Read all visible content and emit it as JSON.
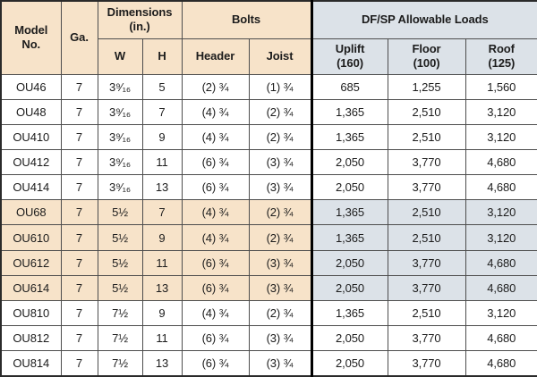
{
  "colors": {
    "tan": "#f7e3c9",
    "bluegray": "#dce2e8",
    "grid": "#4d4d4d",
    "frame": "#2a2a2a",
    "divider": "#000000"
  },
  "table": {
    "header": {
      "model": "Model\nNo.",
      "ga": "Ga.",
      "dimensions_group": "Dimensions\n(in.)",
      "w": "W",
      "h": "H",
      "bolts_group": "Bolts",
      "header_col": "Header",
      "joist": "Joist",
      "loads_group": "DF/SP Allowable Loads",
      "uplift": "Uplift\n(160)",
      "floor": "Floor\n(100)",
      "roof": "Roof\n(125)"
    },
    "rows": [
      {
        "model": "OU46",
        "ga": "7",
        "w": "3⁹⁄₁₆",
        "h": "5",
        "bolts_header": "(2) ¾",
        "bolts_joist": "(1) ¾",
        "uplift": "685",
        "floor": "1,255",
        "roof": "1,560",
        "shaded": false
      },
      {
        "model": "OU48",
        "ga": "7",
        "w": "3⁹⁄₁₆",
        "h": "7",
        "bolts_header": "(4) ¾",
        "bolts_joist": "(2) ¾",
        "uplift": "1,365",
        "floor": "2,510",
        "roof": "3,120",
        "shaded": false
      },
      {
        "model": "OU410",
        "ga": "7",
        "w": "3⁹⁄₁₆",
        "h": "9",
        "bolts_header": "(4) ¾",
        "bolts_joist": "(2) ¾",
        "uplift": "1,365",
        "floor": "2,510",
        "roof": "3,120",
        "shaded": false
      },
      {
        "model": "OU412",
        "ga": "7",
        "w": "3⁹⁄₁₆",
        "h": "11",
        "bolts_header": "(6) ¾",
        "bolts_joist": "(3) ¾",
        "uplift": "2,050",
        "floor": "3,770",
        "roof": "4,680",
        "shaded": false
      },
      {
        "model": "OU414",
        "ga": "7",
        "w": "3⁹⁄₁₆",
        "h": "13",
        "bolts_header": "(6) ¾",
        "bolts_joist": "(3) ¾",
        "uplift": "2,050",
        "floor": "3,770",
        "roof": "4,680",
        "shaded": false
      },
      {
        "model": "OU68",
        "ga": "7",
        "w": "5½",
        "h": "7",
        "bolts_header": "(4) ¾",
        "bolts_joist": "(2) ¾",
        "uplift": "1,365",
        "floor": "2,510",
        "roof": "3,120",
        "shaded": true
      },
      {
        "model": "OU610",
        "ga": "7",
        "w": "5½",
        "h": "9",
        "bolts_header": "(4) ¾",
        "bolts_joist": "(2) ¾",
        "uplift": "1,365",
        "floor": "2,510",
        "roof": "3,120",
        "shaded": true
      },
      {
        "model": "OU612",
        "ga": "7",
        "w": "5½",
        "h": "11",
        "bolts_header": "(6) ¾",
        "bolts_joist": "(3) ¾",
        "uplift": "2,050",
        "floor": "3,770",
        "roof": "4,680",
        "shaded": true
      },
      {
        "model": "OU614",
        "ga": "7",
        "w": "5½",
        "h": "13",
        "bolts_header": "(6) ¾",
        "bolts_joist": "(3) ¾",
        "uplift": "2,050",
        "floor": "3,770",
        "roof": "4,680",
        "shaded": true
      },
      {
        "model": "OU810",
        "ga": "7",
        "w": "7½",
        "h": "9",
        "bolts_header": "(4) ¾",
        "bolts_joist": "(2) ¾",
        "uplift": "1,365",
        "floor": "2,510",
        "roof": "3,120",
        "shaded": false
      },
      {
        "model": "OU812",
        "ga": "7",
        "w": "7½",
        "h": "11",
        "bolts_header": "(6) ¾",
        "bolts_joist": "(3) ¾",
        "uplift": "2,050",
        "floor": "3,770",
        "roof": "4,680",
        "shaded": false
      },
      {
        "model": "OU814",
        "ga": "7",
        "w": "7½",
        "h": "13",
        "bolts_header": "(6) ¾",
        "bolts_joist": "(3) ¾",
        "uplift": "2,050",
        "floor": "3,770",
        "roof": "4,680",
        "shaded": false
      }
    ]
  }
}
